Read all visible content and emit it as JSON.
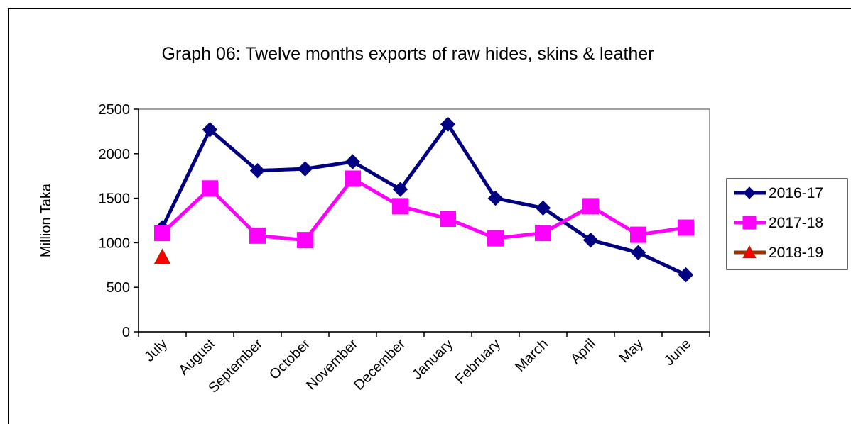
{
  "chart_data": {
    "type": "line",
    "title": "Graph 06: Twelve months exports of raw hides, skins & leather",
    "xlabel": "",
    "ylabel": "Million Taka",
    "ylim": [
      0,
      2500
    ],
    "yticks": [
      0,
      500,
      1000,
      1500,
      2000,
      2500
    ],
    "ytick_labels": [
      "0",
      "500",
      "1000",
      "1500",
      "2000",
      "2500"
    ],
    "grid": false,
    "legend_position": "right",
    "categories": [
      "July",
      "August",
      "September",
      "October",
      "November",
      "December",
      "January",
      "February",
      "March",
      "April",
      "May",
      "June"
    ],
    "series": [
      {
        "name": "2016-17",
        "color": "#000080",
        "marker": "diamond",
        "values": [
          1170,
          2270,
          1810,
          1830,
          1910,
          1600,
          2330,
          1500,
          1390,
          1030,
          890,
          640
        ]
      },
      {
        "name": "2017-18",
        "color": "#FF00FF",
        "marker": "square",
        "values": [
          1110,
          1610,
          1080,
          1030,
          1720,
          1410,
          1270,
          1050,
          1110,
          1410,
          1090,
          1170
        ]
      },
      {
        "name": "2018-19",
        "color": "#993300",
        "marker_color": "#FF0000",
        "marker": "triangle",
        "values": [
          840,
          null,
          null,
          null,
          null,
          null,
          null,
          null,
          null,
          null,
          null,
          null
        ]
      }
    ]
  }
}
